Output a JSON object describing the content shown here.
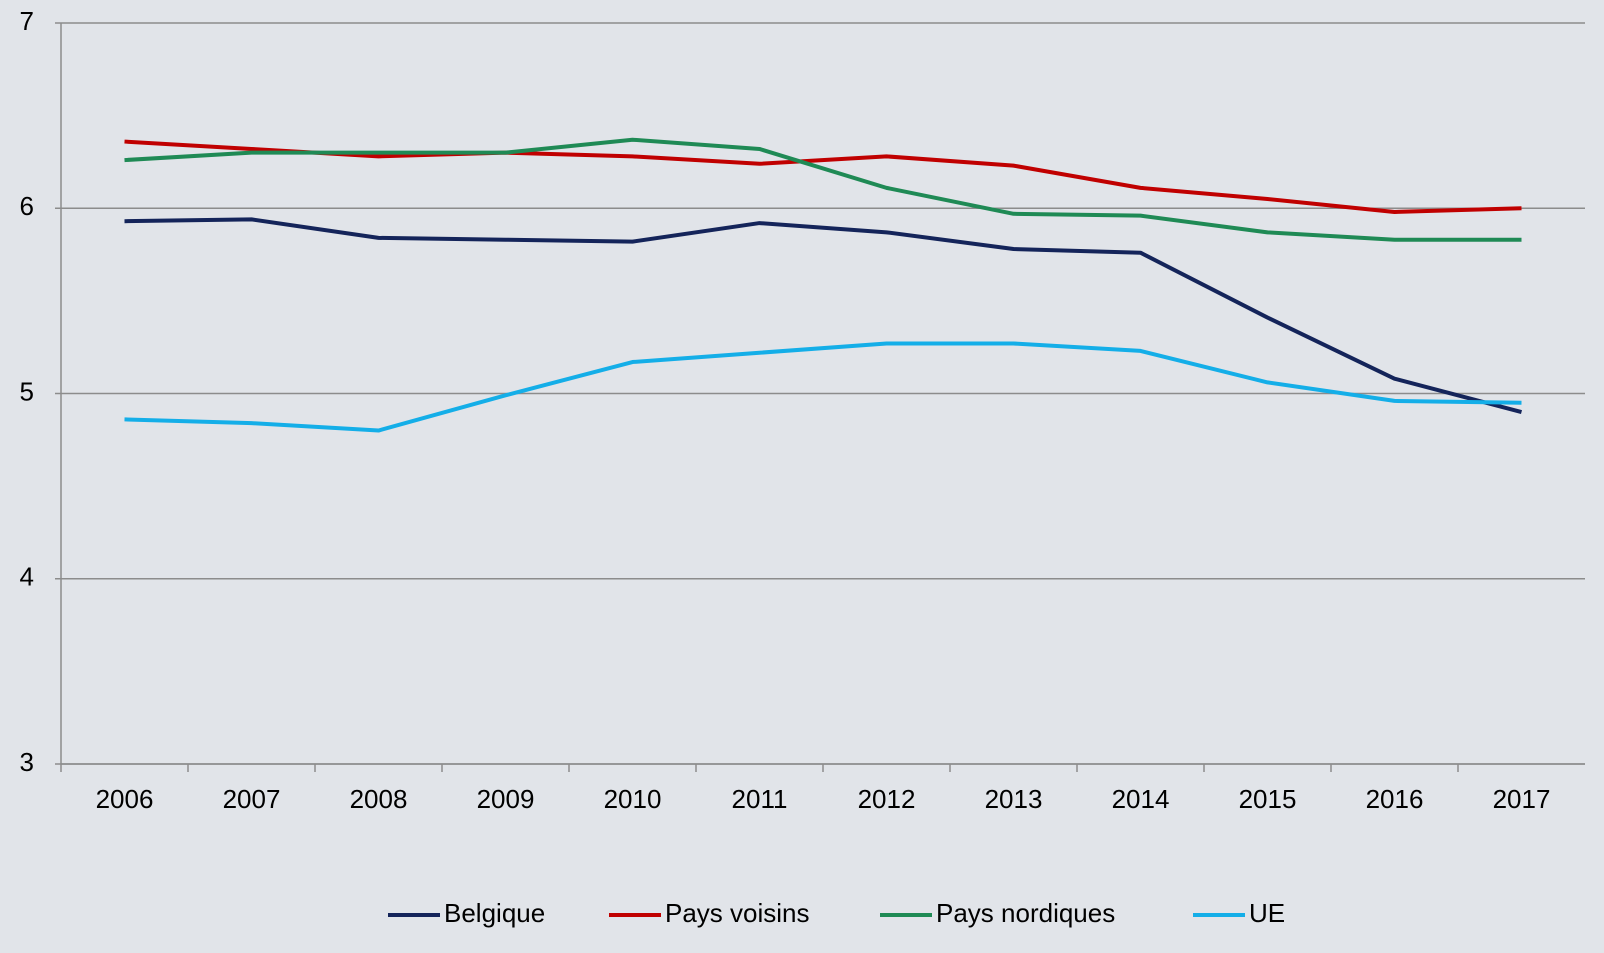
{
  "chart_data": {
    "type": "line",
    "categories": [
      "2006",
      "2007",
      "2008",
      "2009",
      "2010",
      "2011",
      "2012",
      "2013",
      "2014",
      "2015",
      "2016",
      "2017"
    ],
    "series": [
      {
        "name": "Belgique",
        "color": "#14245a",
        "values": [
          5.93,
          5.94,
          5.84,
          5.83,
          5.82,
          5.92,
          5.87,
          5.78,
          5.76,
          5.41,
          5.08,
          4.9
        ]
      },
      {
        "name": "Pays voisins",
        "color": "#c00000",
        "values": [
          6.36,
          6.32,
          6.28,
          6.3,
          6.28,
          6.24,
          6.28,
          6.23,
          6.11,
          6.05,
          5.98,
          6.0
        ]
      },
      {
        "name": "Pays nordiques",
        "color": "#1f8a55",
        "values": [
          6.26,
          6.3,
          6.3,
          6.3,
          6.37,
          6.32,
          6.11,
          5.97,
          5.96,
          5.87,
          5.83,
          5.83
        ]
      },
      {
        "name": "UE",
        "color": "#14aee8",
        "values": [
          4.86,
          4.84,
          4.8,
          4.99,
          5.17,
          5.22,
          5.27,
          5.27,
          5.23,
          5.06,
          4.96,
          4.95
        ]
      }
    ],
    "ylim": [
      3,
      7
    ],
    "yticks": [
      3,
      4,
      5,
      6,
      7
    ],
    "grid": true,
    "legend": "bottom"
  }
}
